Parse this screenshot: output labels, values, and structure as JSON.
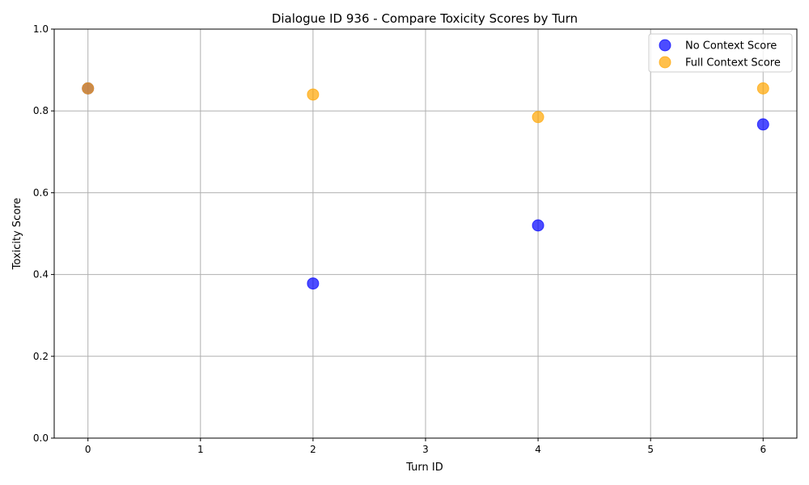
{
  "chart_data": {
    "type": "scatter",
    "title": "Dialogue ID 936 - Compare Toxicity Scores by Turn",
    "xlabel": "Turn ID",
    "ylabel": "Toxicity Score",
    "xlim": [
      -0.3,
      6.3
    ],
    "ylim": [
      0.0,
      1.0
    ],
    "xticks": [
      "0",
      "1",
      "2",
      "3",
      "4",
      "5",
      "6"
    ],
    "yticks": [
      "0.0",
      "0.2",
      "0.4",
      "0.6",
      "0.8",
      "1.0"
    ],
    "grid": true,
    "legend_position": "top-right",
    "series": [
      {
        "name": "No Context Score",
        "color": "#0000ff",
        "points": [
          {
            "x": 0,
            "y": 0.855
          },
          {
            "x": 2,
            "y": 0.378
          },
          {
            "x": 4,
            "y": 0.52
          },
          {
            "x": 6,
            "y": 0.767
          }
        ]
      },
      {
        "name": "Full Context Score",
        "color": "#ffa500",
        "points": [
          {
            "x": 0,
            "y": 0.855
          },
          {
            "x": 2,
            "y": 0.84
          },
          {
            "x": 4,
            "y": 0.785
          },
          {
            "x": 6,
            "y": 0.855
          }
        ]
      }
    ]
  }
}
